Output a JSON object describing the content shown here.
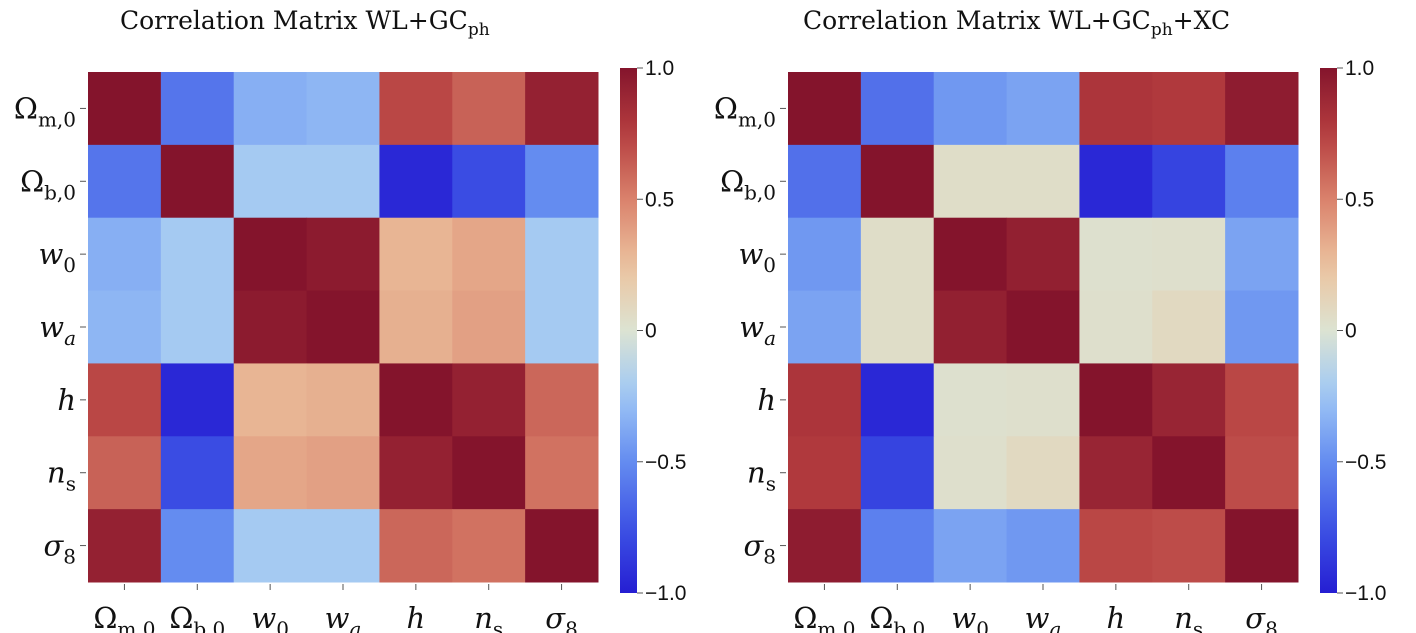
{
  "chart_data": [
    {
      "type": "heatmap",
      "title": "Correlation Matrix WL+GC",
      "title_subscript": "ph",
      "title_suffix": "",
      "row_labels": [
        {
          "base": "Ω",
          "sub": "m,0",
          "italic": false
        },
        {
          "base": "Ω",
          "sub": "b,0",
          "italic": false
        },
        {
          "base": "w",
          "sub": "0",
          "italic": true
        },
        {
          "base": "w",
          "sub": "a",
          "italic": true,
          "sub_italic": true
        },
        {
          "base": "h",
          "sub": "",
          "italic": true
        },
        {
          "base": "n",
          "sub": "s",
          "italic": true
        },
        {
          "base": "σ",
          "sub": "8",
          "italic": true
        }
      ],
      "values": [
        [
          1.0,
          -0.6,
          -0.35,
          -0.32,
          0.72,
          0.62,
          0.92
        ],
        [
          -0.6,
          1.0,
          -0.22,
          -0.22,
          -0.95,
          -0.78,
          -0.5
        ],
        [
          -0.35,
          -0.22,
          1.0,
          0.96,
          0.3,
          0.36,
          -0.22
        ],
        [
          -0.32,
          -0.22,
          0.96,
          1.0,
          0.32,
          0.38,
          -0.22
        ],
        [
          0.72,
          -0.95,
          0.3,
          0.32,
          1.0,
          0.92,
          0.6
        ],
        [
          0.62,
          -0.78,
          0.36,
          0.38,
          0.92,
          1.0,
          0.56
        ],
        [
          0.92,
          -0.5,
          -0.22,
          -0.22,
          0.6,
          0.56,
          1.0
        ]
      ],
      "colorbar": {
        "min": -1.0,
        "max": 1.0,
        "ticks": [
          "1.0",
          "0.5",
          "0",
          "−0.5",
          "−1.0"
        ],
        "tick_values": [
          1.0,
          0.5,
          0,
          -0.5,
          -1.0
        ],
        "colormap": "coolwarm"
      }
    },
    {
      "type": "heatmap",
      "title": "Correlation Matrix WL+GC",
      "title_subscript": "ph",
      "title_suffix": "+XC",
      "row_labels": [
        {
          "base": "Ω",
          "sub": "m,0",
          "italic": false
        },
        {
          "base": "Ω",
          "sub": "b,0",
          "italic": false
        },
        {
          "base": "w",
          "sub": "0",
          "italic": true
        },
        {
          "base": "w",
          "sub": "a",
          "italic": true,
          "sub_italic": true
        },
        {
          "base": "h",
          "sub": "",
          "italic": true
        },
        {
          "base": "n",
          "sub": "s",
          "italic": true
        },
        {
          "base": "σ",
          "sub": "8",
          "italic": true
        }
      ],
      "values": [
        [
          1.0,
          -0.62,
          -0.45,
          -0.4,
          0.8,
          0.78,
          0.95
        ],
        [
          -0.62,
          1.0,
          0.05,
          0.05,
          -0.95,
          -0.82,
          -0.55
        ],
        [
          -0.45,
          0.05,
          1.0,
          0.93,
          0.02,
          0.03,
          -0.4
        ],
        [
          -0.4,
          0.05,
          0.93,
          1.0,
          0.03,
          0.08,
          -0.45
        ],
        [
          0.8,
          -0.95,
          0.02,
          0.03,
          1.0,
          0.9,
          0.72
        ],
        [
          0.78,
          -0.82,
          0.03,
          0.08,
          0.9,
          1.0,
          0.7
        ],
        [
          0.95,
          -0.55,
          -0.4,
          -0.45,
          0.72,
          0.7,
          1.0
        ]
      ],
      "colorbar": {
        "min": -1.0,
        "max": 1.0,
        "ticks": [
          "1.0",
          "0.5",
          "0",
          "−0.5",
          "−1.0"
        ],
        "tick_values": [
          1.0,
          0.5,
          0,
          -0.5,
          -1.0
        ],
        "colormap": "coolwarm"
      }
    }
  ]
}
